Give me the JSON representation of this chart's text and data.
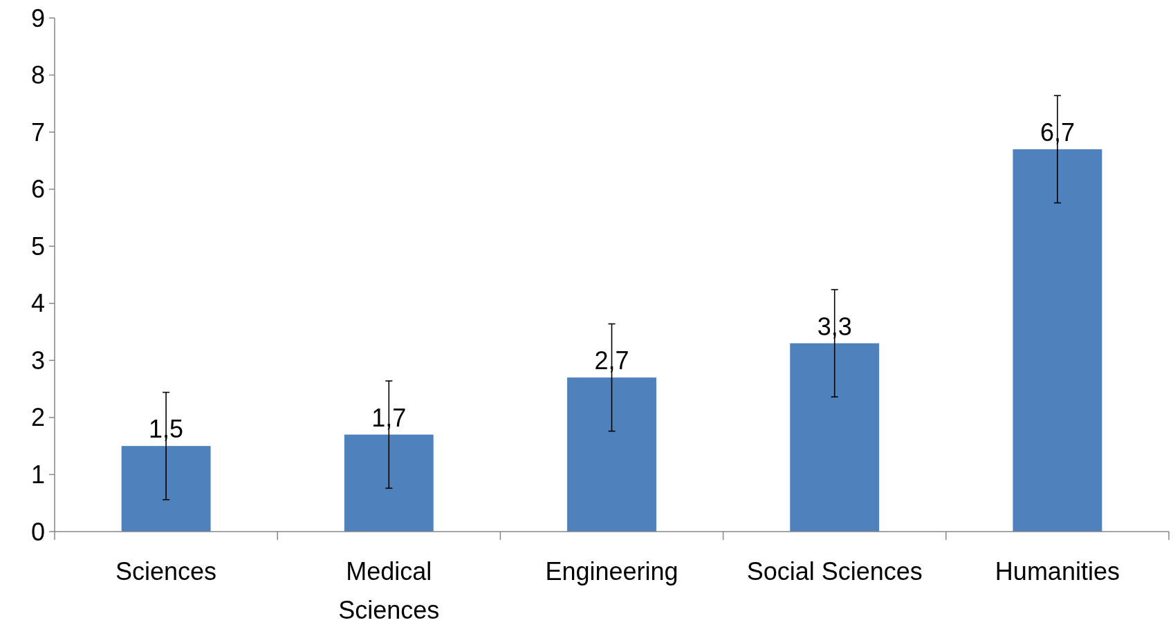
{
  "chart_data": {
    "type": "bar",
    "categories": [
      "Sciences",
      "Medical Sciences",
      "Engineering",
      "Social Sciences",
      "Humanities"
    ],
    "values": [
      1.5,
      1.7,
      2.7,
      3.3,
      6.7
    ],
    "value_labels": [
      "1,5",
      "1,7",
      "2,7",
      "3,3",
      "6,7"
    ],
    "errors": [
      0.94,
      0.94,
      0.94,
      0.94,
      0.94
    ],
    "color": "#4f81bd",
    "ylim": [
      0,
      9
    ],
    "yticks": [
      0,
      1,
      2,
      3,
      4,
      5,
      6,
      7,
      8,
      9
    ],
    "grid": false
  }
}
